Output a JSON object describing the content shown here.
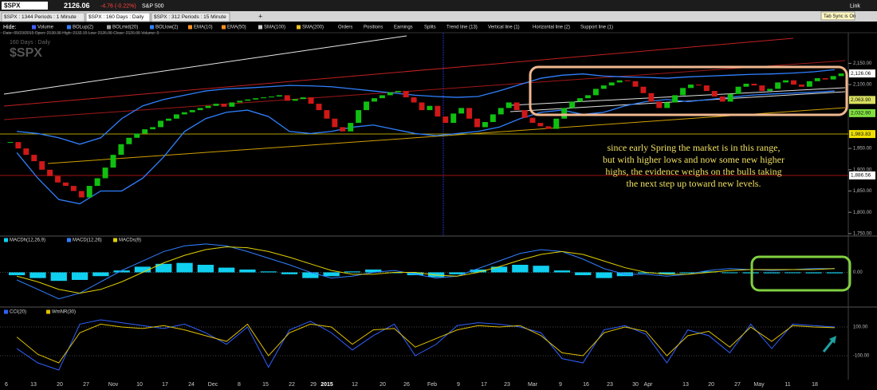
{
  "toolbar": {
    "symbol": "$SPX",
    "last": "2126.06",
    "change": "-4.76 (-0.22%)",
    "name": "S&P 500",
    "link": "Link"
  },
  "tabs": [
    "$SPX : 1344 Periods : 1 Minute",
    "$SPX : 160  Days : Daily",
    "$SPX : 312 Periods : 15 Minute"
  ],
  "tab_add": "+",
  "tab_sync": "Tab Sync is On",
  "legend": {
    "hide": "Hide:",
    "items": [
      {
        "name": "Volume",
        "color": "#4060ff"
      },
      {
        "name": "BOLup(2)",
        "color": "#3080ff"
      },
      {
        "name": "BOLmid(20)",
        "color": "#a0a0a0"
      },
      {
        "name": "BOLlow(2)",
        "color": "#3080ff"
      },
      {
        "name": "EMA(10)",
        "color": "#ff9020"
      },
      {
        "name": "EMA(50)",
        "color": "#ff9020"
      },
      {
        "name": "SMA(100)",
        "color": "#d0d0d0"
      },
      {
        "name": "SMA(200)",
        "color": "#f0c020"
      },
      {
        "name": "Orders"
      },
      {
        "name": "Positions"
      },
      {
        "name": "Earnings"
      },
      {
        "name": "Splits"
      },
      {
        "name": "Trend line (13)"
      },
      {
        "name": "Vertical line (1)"
      },
      {
        "name": "Horizontal line (2)"
      },
      {
        "name": "Support line (1)"
      }
    ]
  },
  "info": "Date: 05/23/2015  Open: 2130.36  High: 2132.15  Low: 2126.06  Close: 2126.06  Volume: 0",
  "x_labels": [
    "6",
    "13",
    "20",
    "27",
    "Nov",
    "10",
    "17",
    "24",
    "Dec",
    "8",
    "15",
    "22",
    "29",
    "2015",
    "12",
    "20",
    "26",
    "Feb",
    "9",
    "17",
    "23",
    "Mar",
    "9",
    "16",
    "23",
    "30",
    "Apr",
    "13",
    "20",
    "27",
    "May",
    "11",
    "18"
  ],
  "chart_data": [
    {
      "type": "candlestick",
      "title": "$SPX",
      "subtitle": "160  Days : Daily",
      "up_color": "#10c010",
      "down_color": "#d01818",
      "values": [
        1965,
        1950,
        1935,
        1920,
        1900,
        1885,
        1870,
        1862,
        1850,
        1835,
        1862,
        1880,
        1905,
        1935,
        1960,
        1975,
        1985,
        1995,
        2000,
        2015,
        2020,
        2030,
        2035,
        2040,
        2045,
        2050,
        2055,
        2048,
        2058,
        2062,
        2065,
        2068,
        2070,
        2072,
        2075,
        2062,
        2066,
        2070,
        2055,
        2040,
        2020,
        2000,
        1990,
        2010,
        2040,
        2060,
        2068,
        2075,
        2082,
        2085,
        2070,
        2058,
        2040,
        2050,
        2025,
        2010,
        2032,
        2045,
        2020,
        2000,
        2012,
        2030,
        2045,
        2058,
        2040,
        2022,
        2010,
        2002,
        1996,
        2020,
        2045,
        2060,
        2068,
        2075,
        2090,
        2098,
        2105,
        2110,
        2108,
        2095,
        2080,
        2060,
        2045,
        2058,
        2075,
        2092,
        2100,
        2098,
        2085,
        2072,
        2060,
        2078,
        2095,
        2102,
        2098,
        2085,
        2090,
        2105,
        2110,
        2100,
        2095,
        2108,
        2115,
        2112,
        2120,
        2126
      ],
      "series": [
        {
          "name": "BOLup(2)",
          "color": "#3080ff",
          "values": [
            1990,
            1985,
            1975,
            1960,
            1975,
            2020,
            2050,
            2065,
            2075,
            2085,
            2090,
            2092,
            2095,
            2098,
            2097,
            2095,
            2090,
            2085,
            2080,
            2075,
            2072,
            2070,
            2072,
            2085,
            2100,
            2115,
            2122,
            2125,
            2120,
            2118,
            2117,
            2115,
            2118,
            2120,
            2122,
            2124,
            2125,
            2127,
            2130,
            2135
          ]
        },
        {
          "name": "BOLlow(2)",
          "color": "#3080ff",
          "values": [
            1940,
            1880,
            1830,
            1820,
            1850,
            1850,
            1880,
            1930,
            1990,
            2020,
            2035,
            2040,
            2025,
            1990,
            1985,
            1990,
            2000,
            2005,
            1995,
            1985,
            1980,
            1985,
            1990,
            2000,
            2020,
            2035,
            2040,
            2030,
            2035,
            2050,
            2060,
            2065,
            2060,
            2065,
            2070,
            2075,
            2078,
            2080,
            2082,
            2085
          ]
        }
      ],
      "price_labels": [
        {
          "value": 2126.06,
          "label": "2,126.06",
          "color": "#ffffff"
        },
        {
          "value": 2063.9,
          "label": "2,063.90",
          "color": "#d8e060"
        },
        {
          "value": 2032.9,
          "label": "2,032.90",
          "color": "#80e040"
        },
        {
          "value": 1983.83,
          "label": "1,983.83",
          "color": "#f0e000",
          "line_color": "#b0a000"
        },
        {
          "value": 1886.56,
          "label": "1,886.56",
          "color": "#ffffff",
          "line_color": "#a01010"
        }
      ],
      "ylim": [
        1746,
        2220
      ],
      "yticks": [
        {
          "value": 2150,
          "label": "2,150.00"
        },
        {
          "value": 2100,
          "label": "2,100.00"
        },
        {
          "value": 1950,
          "label": "1,950.00"
        },
        {
          "value": 1900,
          "label": "1,900.00"
        },
        {
          "value": 1850,
          "label": "1,850.00"
        },
        {
          "value": 1800,
          "label": "1,800.00"
        },
        {
          "value": 1750,
          "label": "1,750.00"
        }
      ],
      "annotation": [
        "since early Spring the market is in this range,",
        "but with higher lows and now some new higher",
        "highs, the evidence weighs on the bulls taking",
        "the next step up toward new levels."
      ]
    },
    {
      "type": "macd",
      "series": [
        {
          "name": "MACDh(12,26,9)",
          "color": "#10d0f0",
          "style": "histogram",
          "values": [
            -3,
            -6,
            -9,
            -8,
            -4,
            2,
            6,
            9,
            10,
            8,
            5,
            3,
            1,
            -2,
            -6,
            -4,
            1,
            3,
            0,
            -3,
            -5,
            -2,
            3,
            6,
            8,
            7,
            2,
            -3,
            -6,
            -4,
            -1,
            -2,
            0,
            1,
            0,
            -1,
            -1,
            0,
            -1,
            -1
          ]
        },
        {
          "name": "MACD(12,26)",
          "color": "#3080ff",
          "style": "line",
          "values": [
            -8,
            -18,
            -28,
            -22,
            -10,
            2,
            12,
            22,
            28,
            30,
            28,
            22,
            15,
            8,
            0,
            -6,
            -4,
            0,
            2,
            -2,
            -6,
            -4,
            4,
            12,
            20,
            24,
            22,
            14,
            4,
            -2,
            -2,
            -4,
            -2,
            2,
            4,
            3,
            2,
            3,
            4,
            4
          ]
        },
        {
          "name": "MACDs(9)",
          "color": "#e0d000",
          "style": "line",
          "values": [
            -4,
            -10,
            -18,
            -22,
            -18,
            -10,
            0,
            10,
            18,
            24,
            27,
            26,
            22,
            16,
            9,
            2,
            -2,
            -2,
            0,
            0,
            -3,
            -4,
            0,
            6,
            13,
            19,
            22,
            19,
            12,
            5,
            0,
            -2,
            -2,
            0,
            2,
            3,
            3,
            3,
            3,
            4
          ]
        }
      ],
      "ylim": [
        -35,
        35
      ],
      "yticks": [
        {
          "value": 0,
          "label": "0.00"
        }
      ]
    },
    {
      "type": "line",
      "series": [
        {
          "name": "CCI(20)",
          "color": "#3060ff",
          "values": [
            -50,
            -150,
            -200,
            120,
            150,
            130,
            110,
            90,
            120,
            60,
            -20,
            100,
            -180,
            80,
            140,
            60,
            -60,
            40,
            120,
            -100,
            -20,
            110,
            130,
            120,
            100,
            60,
            -120,
            -150,
            80,
            110,
            50,
            -150,
            80,
            40,
            -80,
            120,
            -50,
            120,
            110,
            100
          ]
        },
        {
          "name": "WmNR(30)",
          "color": "#e0c000",
          "values": [
            30,
            -90,
            -150,
            60,
            120,
            100,
            90,
            110,
            80,
            40,
            0,
            120,
            -100,
            60,
            120,
            100,
            -20,
            80,
            90,
            -40,
            20,
            80,
            110,
            100,
            110,
            40,
            -80,
            -100,
            60,
            100,
            70,
            -100,
            40,
            70,
            -40,
            100,
            0,
            110,
            100,
            95
          ]
        }
      ],
      "ylim": [
        -261,
        228
      ],
      "yticks": [
        {
          "value": 100,
          "label": "100.00"
        },
        {
          "value": -100,
          "label": "-100.00"
        }
      ]
    }
  ]
}
